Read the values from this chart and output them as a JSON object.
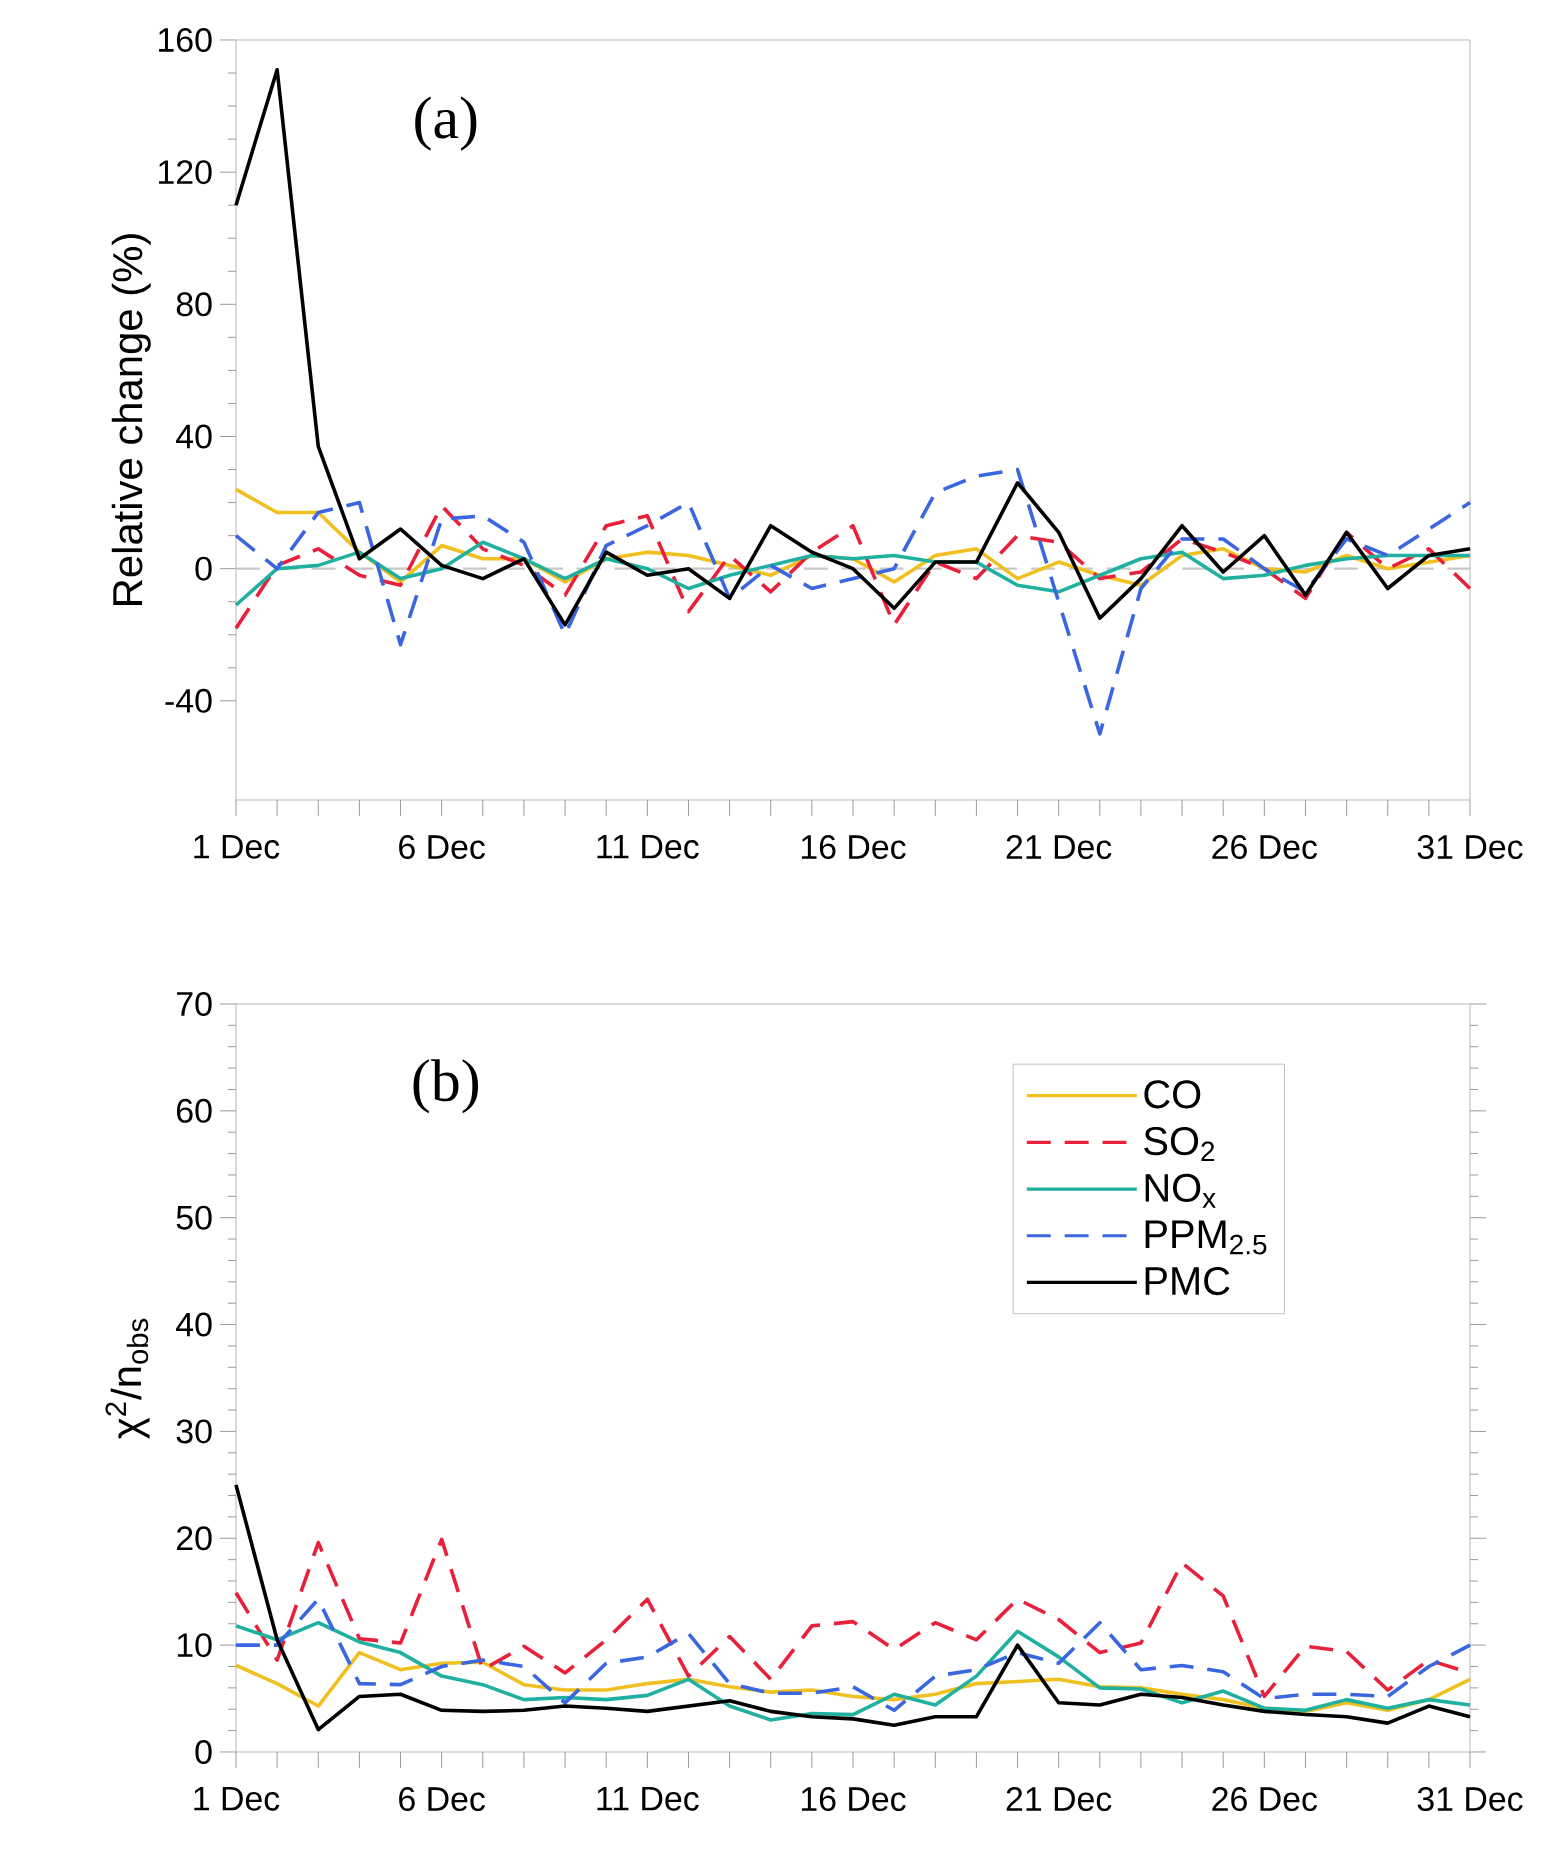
{
  "chart_data": [
    {
      "type": "line",
      "ylabel": "Relative change (%)",
      "annotations": [
        "(a)"
      ],
      "categories": [
        "1 Dec",
        null,
        null,
        null,
        null,
        "6 Dec",
        null,
        null,
        null,
        null,
        "11 Dec",
        null,
        null,
        null,
        null,
        "16 Dec",
        null,
        null,
        null,
        null,
        "21 Dec",
        null,
        null,
        null,
        null,
        "26 Dec",
        null,
        null,
        null,
        null,
        "31 Dec"
      ],
      "ylim": [
        -70,
        160
      ],
      "yticks": [
        -40,
        0,
        40,
        80,
        120,
        160
      ],
      "ref_lines": [
        {
          "axis": "y",
          "value": 0,
          "color": "#c8c8c8",
          "line_style": "dashed"
        }
      ],
      "series": [
        {
          "color": "#f0c020",
          "line_style": "solid",
          "values": [
            24,
            17,
            17,
            5,
            -4,
            7,
            3,
            3,
            -4,
            3,
            5,
            4,
            1,
            -2,
            4,
            3,
            -4,
            4,
            6,
            -3,
            2,
            -2,
            -5,
            4,
            6,
            0,
            -1,
            4,
            0,
            2,
            4
          ]
        },
        {
          "color": "#e8203a",
          "line_style": "dashed",
          "values": [
            -18,
            1,
            6,
            -2,
            -5,
            19,
            6,
            1,
            -8,
            13,
            16,
            -13,
            4,
            -7,
            5,
            13,
            -17,
            2,
            -3,
            10,
            8,
            -3,
            -1,
            9,
            5,
            0,
            -9,
            11,
            0,
            6,
            -6
          ]
        },
        {
          "color": "#20b0a0",
          "line_style": "solid",
          "values": [
            -11,
            0,
            1,
            5,
            -3,
            0,
            8,
            3,
            -3,
            3,
            0,
            -6,
            -2,
            1,
            4,
            3,
            4,
            2,
            2,
            -5,
            -7,
            -2,
            3,
            5,
            -3,
            -2,
            1,
            3,
            4,
            4,
            4
          ]
        },
        {
          "color": "#3a66e0",
          "line_style": "dashed",
          "values": [
            10,
            0,
            17,
            20,
            -23,
            15,
            16,
            8,
            -20,
            7,
            13,
            20,
            -9,
            1,
            -6,
            -3,
            0,
            23,
            28,
            30,
            -10,
            -50,
            -6,
            9,
            9,
            0,
            -7,
            9,
            4,
            12,
            20
          ]
        },
        {
          "color": "#000000",
          "line_style": "solid",
          "values": [
            110,
            151,
            37,
            3,
            12,
            1,
            -3,
            3,
            -17,
            5,
            -2,
            0,
            -9,
            13,
            5,
            0,
            -12,
            2,
            2,
            26,
            11,
            -15,
            -3,
            13,
            -1,
            10,
            -8,
            11,
            -6,
            4,
            6
          ]
        }
      ]
    },
    {
      "type": "line",
      "ylabel": "χ$^{2}$/n$_{obs}$",
      "annotations": [
        "(b)"
      ],
      "legend": "top right",
      "categories": [
        "1 Dec",
        null,
        null,
        null,
        null,
        "6 Dec",
        null,
        null,
        null,
        null,
        "11 Dec",
        null,
        null,
        null,
        null,
        "16 Dec",
        null,
        null,
        null,
        null,
        "21 Dec",
        null,
        null,
        null,
        null,
        "26 Dec",
        null,
        null,
        null,
        null,
        "31 Dec"
      ],
      "ylim": [
        0,
        70
      ],
      "yticks": [
        0,
        10,
        20,
        30,
        40,
        50,
        60,
        70
      ],
      "series": [
        {
          "name": "CO",
          "color": "#f0c020",
          "line_style": "solid",
          "values": [
            8.1,
            6.4,
            4.3,
            9.3,
            7.7,
            8.3,
            8.4,
            6.3,
            5.8,
            5.8,
            6.4,
            6.8,
            6.1,
            5.6,
            5.8,
            5.2,
            4.9,
            5.4,
            6.4,
            6.6,
            6.8,
            6.1,
            6.0,
            5.4,
            4.9,
            4.1,
            3.8,
            4.6,
            3.9,
            4.9,
            6.8
          ]
        },
        {
          "name": "SO$_{2}$",
          "color": "#e8203a",
          "line_style": "dashed",
          "values": [
            14.9,
            8.6,
            19.6,
            10.6,
            10.2,
            19.9,
            7.7,
            9.9,
            7.4,
            10.5,
            14.3,
            7.1,
            10.8,
            6.8,
            11.8,
            12.2,
            9.6,
            12.1,
            10.5,
            14.3,
            12.4,
            9.3,
            10.2,
            17.7,
            14.6,
            5.2,
            9.9,
            9.4,
            5.8,
            8.6,
            7.4
          ]
        },
        {
          "name": "NO$_{x}$",
          "color": "#20b0a0",
          "line_style": "solid",
          "values": [
            11.8,
            10.5,
            12.1,
            10.3,
            9.3,
            7.1,
            6.3,
            4.9,
            5.1,
            4.9,
            5.3,
            6.8,
            4.3,
            3.0,
            3.6,
            3.5,
            5.4,
            4.4,
            7.1,
            11.3,
            8.9,
            6.0,
            5.9,
            4.6,
            5.7,
            4.1,
            3.9,
            4.9,
            4.1,
            4.9,
            4.4
          ]
        },
        {
          "name": "PPM$_{2.5}$",
          "color": "#3a66e0",
          "line_style": "dashed",
          "values": [
            10.0,
            10.0,
            14.3,
            6.4,
            6.3,
            8.0,
            8.6,
            8.0,
            4.6,
            8.3,
            8.9,
            11.1,
            6.4,
            5.5,
            5.5,
            6.1,
            3.9,
            7.1,
            7.7,
            9.3,
            8.3,
            12.1,
            7.7,
            8.1,
            7.5,
            5.0,
            5.4,
            5.4,
            5.2,
            8.0,
            10.0
          ]
        },
        {
          "name": "PMC",
          "color": "#000000",
          "line_style": "solid",
          "values": [
            25.0,
            10.5,
            2.1,
            5.2,
            5.4,
            3.9,
            3.8,
            3.9,
            4.3,
            4.1,
            3.8,
            4.3,
            4.8,
            3.8,
            3.3,
            3.1,
            2.5,
            3.3,
            3.3,
            10.0,
            4.6,
            4.4,
            5.4,
            5.1,
            4.4,
            3.8,
            3.5,
            3.3,
            2.7,
            4.3,
            3.3
          ]
        }
      ]
    }
  ]
}
